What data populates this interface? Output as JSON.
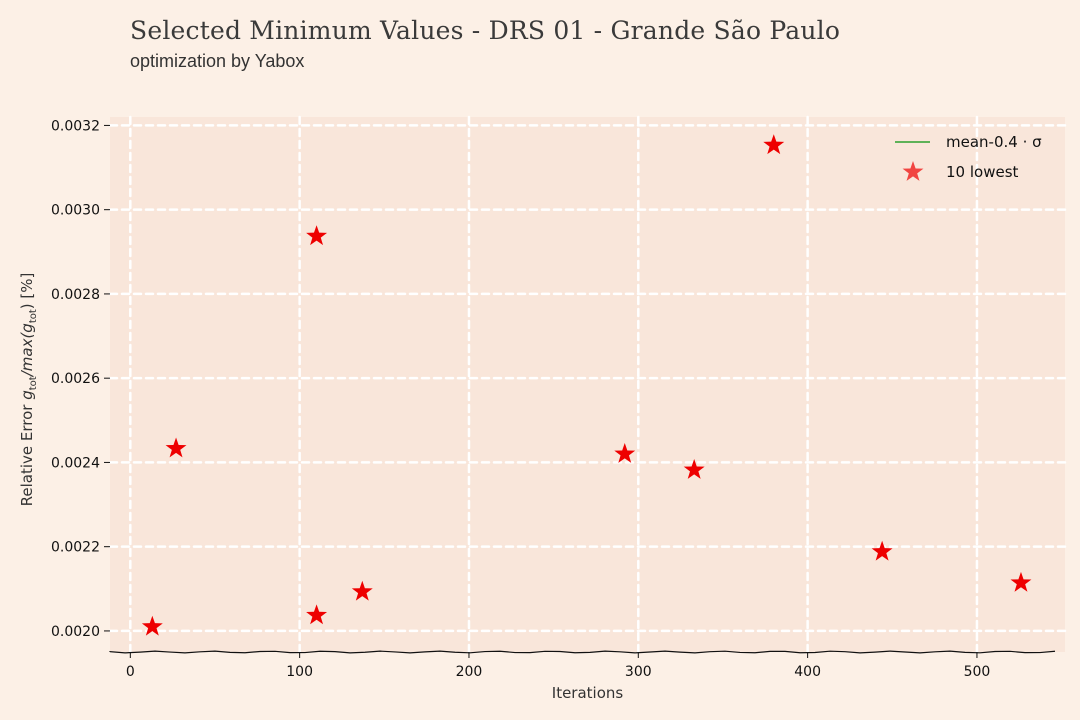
{
  "title": "Selected Minimum Values - DRS 01 - Grande São Paulo",
  "subtitle": "optimization by Yabox",
  "colors": {
    "background": "#fcf0e6",
    "plot_background": "#f9e6da",
    "grid": "#ffffff",
    "marker": "#ee0000",
    "mean_line": "#2ca02c"
  },
  "chart_data": {
    "type": "scatter",
    "xlabel": "Iterations",
    "ylabel": "Relative Error g_tot/max(g_tot) [%]",
    "xlim": [
      -12,
      552
    ],
    "ylim": [
      0.00195,
      0.00322
    ],
    "x_ticks": [
      0,
      100,
      200,
      300,
      400,
      500
    ],
    "y_ticks": [
      0.002,
      0.0022,
      0.0024,
      0.0026,
      0.0028,
      0.003,
      0.0032
    ],
    "x_tick_labels": [
      "0",
      "100",
      "200",
      "300",
      "400",
      "500"
    ],
    "y_tick_labels": [
      "0.0020",
      "0.0022",
      "0.0024",
      "0.0026",
      "0.0028",
      "0.0030",
      "0.0032"
    ],
    "grid": true,
    "legend_position": "top-right",
    "legend": [
      {
        "label": "mean-0.4 · σ",
        "kind": "line"
      },
      {
        "label": "10 lowest",
        "kind": "star"
      }
    ],
    "series": [
      {
        "name": "10 lowest",
        "marker": "star",
        "x": [
          13,
          27,
          110,
          110,
          137,
          292,
          333,
          380,
          444,
          526
        ],
        "y": [
          0.00201,
          0.002433,
          0.002037,
          0.002937,
          0.002093,
          0.00242,
          0.002382,
          0.003153,
          0.002188,
          0.002114
        ]
      }
    ]
  }
}
